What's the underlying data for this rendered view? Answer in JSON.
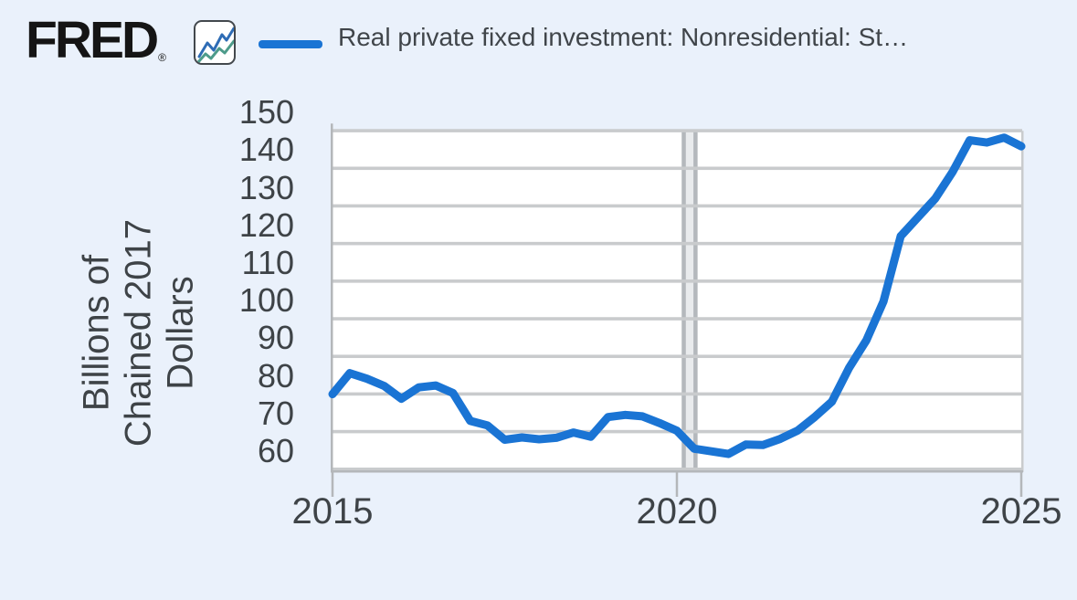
{
  "header": {
    "logo_text": "FRED",
    "logo_registered": "®",
    "legend_icon": "line-swatch",
    "series_title": "Real private fixed investment: Nonresidential: St…"
  },
  "colors": {
    "background": "#eaf1fb",
    "plot_background": "#ffffff",
    "line": "#1a74d4",
    "gridline": "#c9cbcd",
    "axis": "#b4b7ba",
    "tick_label": "#3e4347",
    "title_text": "#40454a",
    "recession_fill": "#e9ebed",
    "recession_edge": "#b4b8bc",
    "logo_icon_blue": "#2e6cb5",
    "logo_icon_teal": "#4d9b8a"
  },
  "chart_data": {
    "type": "line",
    "title": "Real private fixed investment: Nonresidential: St…",
    "ylabel": "Billions of Chained 2017 Dollars",
    "ylabel_lines": [
      "Billions of",
      "Chained 2017",
      "Dollars"
    ],
    "y_ticks": [
      150,
      140,
      130,
      120,
      110,
      100,
      90,
      80,
      70,
      60
    ],
    "x_ticks": [
      2015,
      2020,
      2025
    ],
    "ylim": [
      60,
      150
    ],
    "xlim": [
      2015.0,
      2025.0
    ],
    "grid": "horizontal",
    "legend_position": "top",
    "frequency": "quarterly",
    "recession_band": {
      "x_start": 2020.07,
      "x_end": 2020.3
    },
    "series": [
      {
        "name": "Real private fixed investment: Nonresidential: St…",
        "color": "#1a74d4",
        "x": [
          2015.0,
          2015.25,
          2015.5,
          2015.75,
          2016.0,
          2016.25,
          2016.5,
          2016.75,
          2017.0,
          2017.25,
          2017.5,
          2017.75,
          2018.0,
          2018.25,
          2018.5,
          2018.75,
          2019.0,
          2019.25,
          2019.5,
          2019.75,
          2020.0,
          2020.25,
          2020.5,
          2020.75,
          2021.0,
          2021.25,
          2021.5,
          2021.75,
          2022.0,
          2022.25,
          2022.5,
          2022.75,
          2023.0,
          2023.25,
          2023.5,
          2023.75,
          2024.0,
          2024.25,
          2024.5,
          2024.75,
          2025.0
        ],
        "values": [
          80.0,
          85.6,
          84.1,
          82.2,
          78.8,
          81.8,
          82.3,
          80.3,
          72.9,
          71.7,
          67.9,
          68.5,
          68.0,
          68.4,
          69.8,
          68.7,
          73.9,
          74.5,
          74.1,
          72.3,
          70.3,
          65.5,
          64.8,
          64.1,
          66.6,
          66.5,
          68.1,
          70.3,
          73.9,
          78.0,
          87.0,
          94.3,
          104.7,
          122.0,
          127.0,
          132.0,
          139.0,
          147.5,
          146.9,
          148.2,
          145.9
        ]
      }
    ]
  }
}
